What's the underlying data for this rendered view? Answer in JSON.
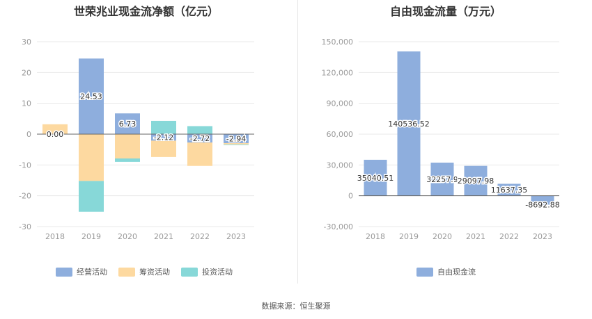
{
  "colors": {
    "operating": "#8eaedd",
    "financing": "#fdd9a0",
    "investing": "#87d8d8",
    "fcf": "#8eaedd",
    "grid": "#e8e8e8",
    "axis": "#666666"
  },
  "chart_data": [
    {
      "type": "bar",
      "stacked": true,
      "title": "世荣兆业现金流净额（亿元）",
      "categories": [
        "2018",
        "2019",
        "2020",
        "2021",
        "2022",
        "2023"
      ],
      "series": [
        {
          "name": "经营活动",
          "values": [
            0.0,
            24.53,
            6.73,
            -2.12,
            -2.72,
            -2.94
          ]
        },
        {
          "name": "筹资活动",
          "values": [
            3.2,
            -15.2,
            -7.9,
            -5.3,
            -7.6,
            -0.4
          ]
        },
        {
          "name": "投资活动",
          "values": [
            0.0,
            -10.0,
            -1.1,
            4.3,
            2.6,
            -0.2
          ]
        }
      ],
      "data_labels": [
        "0.00",
        "24.53",
        "6.73",
        "-2.12",
        "-2.72",
        "-2.94"
      ],
      "yticks": [
        "30",
        "20",
        "10",
        "0",
        "-10",
        "-20",
        "-30"
      ],
      "ylim": [
        -30,
        30
      ],
      "grid": true,
      "legend_position": "bottom"
    },
    {
      "type": "bar",
      "title": "自由现金流量（万元）",
      "categories": [
        "2018",
        "2019",
        "2020",
        "2021",
        "2022",
        "2023"
      ],
      "series": [
        {
          "name": "自由现金流",
          "values": [
            35040.51,
            140536.52,
            32257.9,
            29097.98,
            11637.35,
            -8692.88
          ]
        }
      ],
      "data_labels": [
        "35040.51",
        "140536.52",
        "32257.9",
        "29097.98",
        "11637.35",
        "-8692.88"
      ],
      "yticks": [
        "150,000",
        "120,000",
        "90,000",
        "60,000",
        "30,000",
        "0",
        "-30,000"
      ],
      "ylim": [
        -30000,
        150000
      ],
      "grid": true,
      "legend_position": "bottom"
    }
  ],
  "source": "数据来源：恒生聚源"
}
